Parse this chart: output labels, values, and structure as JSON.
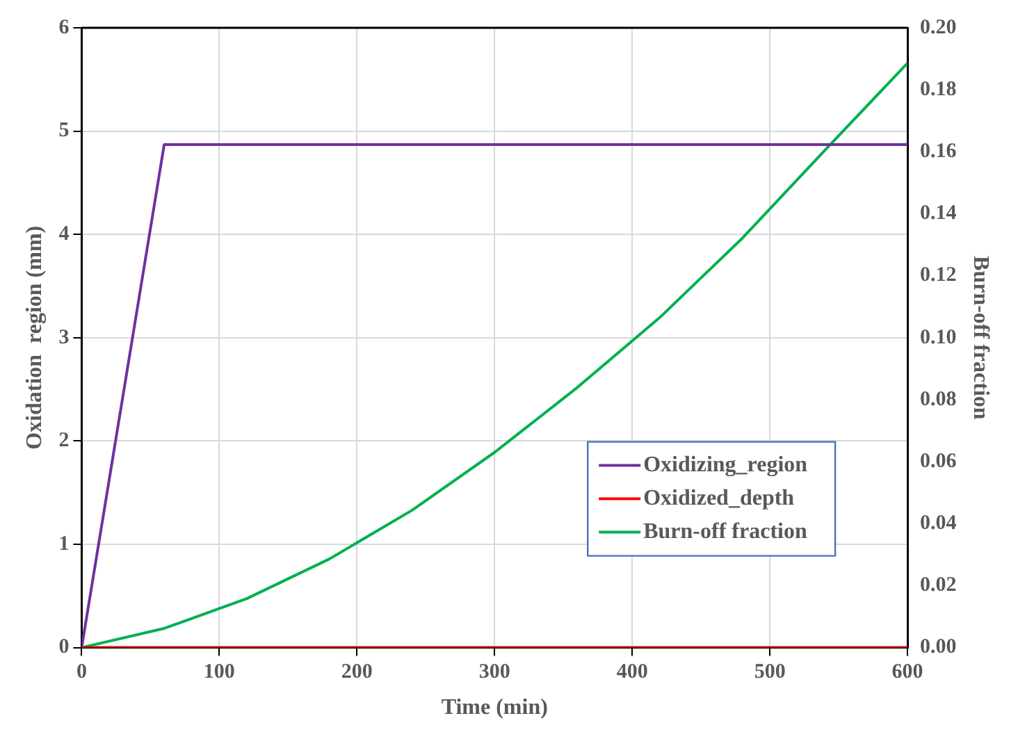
{
  "chart_data": {
    "type": "line",
    "xlabel": "Time (min)",
    "ylabel": "Oxidation  region (mm)",
    "y2label": "Burn-off fraction",
    "xlim": [
      0,
      600
    ],
    "xticks": [
      0,
      100,
      200,
      300,
      400,
      500,
      600
    ],
    "ylim": [
      0,
      6
    ],
    "yticks": [
      0,
      1,
      2,
      3,
      4,
      5,
      6
    ],
    "y2lim": [
      0,
      0.2
    ],
    "y2ticks": [
      {
        "value": 0,
        "label": "0.00"
      },
      {
        "value": 0.02,
        "label": "0.02"
      },
      {
        "value": 0.04,
        "label": "0.04"
      },
      {
        "value": 0.06,
        "label": "0.06"
      },
      {
        "value": 0.08,
        "label": "0.08"
      },
      {
        "value": 0.1,
        "label": "0.10"
      },
      {
        "value": 0.12,
        "label": "0.12"
      },
      {
        "value": 0.14,
        "label": "0.14"
      },
      {
        "value": 0.16,
        "label": "0.16"
      },
      {
        "value": 0.18,
        "label": "0.18"
      },
      {
        "value": 0.2,
        "label": "0.20"
      }
    ],
    "grid": true,
    "legend": "bottom right",
    "marker": "none",
    "line_style": "solid",
    "series": [
      {
        "name": "Oxidizing_region",
        "color": "#7030a0",
        "x": [
          0,
          60,
          600
        ],
        "values": [
          0,
          4.87,
          4.87
        ]
      },
      {
        "name": "Oxidized_depth",
        "color": "#ff0000",
        "x": [
          0,
          600
        ],
        "values": [
          0,
          0
        ]
      },
      {
        "name": "Burn-off fraction",
        "color": "#00b050",
        "axis": "y2",
        "x": [
          0,
          60,
          120,
          180,
          240,
          300,
          360,
          420,
          480,
          540,
          600
        ],
        "values": [
          0,
          0.0062,
          0.0158,
          0.0286,
          0.0443,
          0.063,
          0.0839,
          0.1065,
          0.1321,
          0.1605,
          0.1886
        ]
      }
    ]
  }
}
